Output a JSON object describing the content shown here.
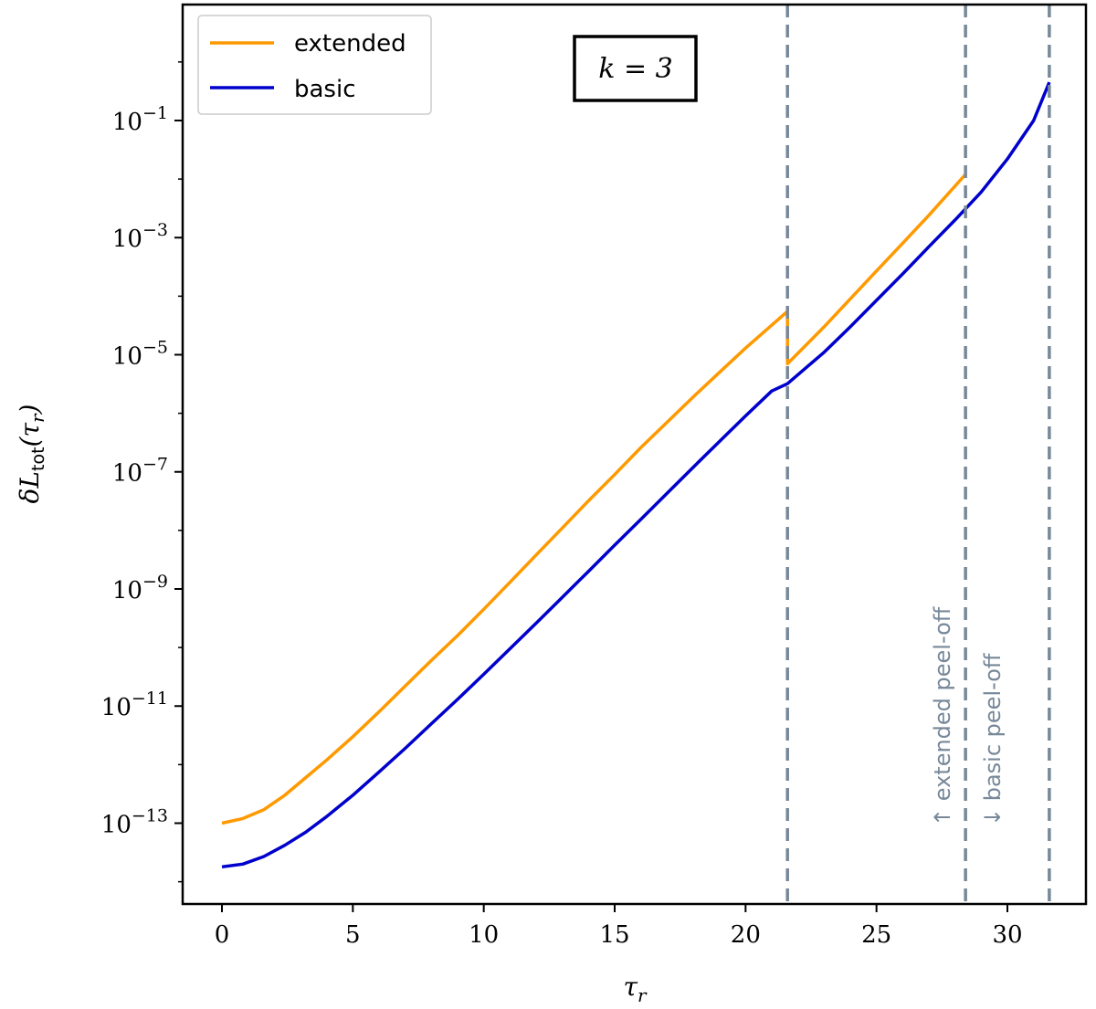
{
  "chart_data": {
    "type": "line",
    "title": "",
    "xlabel": "τ_r",
    "ylabel": "δL_tot(τ_r)",
    "xlim": [
      -1.5,
      33.0
    ],
    "ylim_log10": [
      -14.38,
      0.98
    ],
    "yscale": "log",
    "grid": false,
    "legend_position": "top-left",
    "x_ticks": [
      0,
      5,
      10,
      15,
      20,
      25,
      30
    ],
    "x_tick_labels": [
      "0",
      "5",
      "10",
      "15",
      "20",
      "25",
      "30"
    ],
    "y_ticks_log10": [
      -13,
      -11,
      -9,
      -7,
      -5,
      -3,
      -1
    ],
    "y_tick_mantissa": "10",
    "y_tick_exponents": [
      "−13",
      "−11",
      "−9",
      "−7",
      "−5",
      "−3",
      "−1"
    ],
    "series": [
      {
        "name": "extended",
        "color": "#FF9900",
        "x": [
          0.0,
          0.8,
          1.6,
          2.4,
          3.2,
          4.0,
          5.0,
          6.0,
          7.0,
          8.0,
          9.0,
          10.0,
          11.0,
          12.0,
          13.0,
          14.0,
          15.0,
          16.0,
          17.0,
          18.0,
          19.0,
          20.0,
          21.0,
          21.6,
          21.6,
          23.0,
          24.0,
          25.0,
          26.0,
          27.0,
          28.4
        ],
        "y": [
          1e-13,
          1.2e-13,
          1.7e-13,
          3e-13,
          6e-13,
          1.2e-12,
          3e-12,
          8e-12,
          2.2e-11,
          6e-11,
          1.6e-10,
          4.5e-10,
          1.3e-09,
          3.8e-09,
          1.1e-08,
          3.2e-08,
          9e-08,
          2.6e-07,
          7e-07,
          1.9e-06,
          5e-06,
          1.3e-05,
          3.2e-05,
          5.5e-05,
          7e-06,
          3e-05,
          9e-05,
          0.00027,
          0.0008,
          0.0024,
          0.012
        ]
      },
      {
        "name": "basic",
        "color": "#0000CC",
        "x": [
          0.0,
          0.8,
          1.6,
          2.4,
          3.2,
          4.0,
          5.0,
          6.0,
          7.0,
          8.0,
          9.0,
          10.0,
          11.0,
          12.0,
          13.0,
          14.0,
          15.0,
          16.0,
          17.0,
          18.0,
          19.0,
          20.0,
          21.0,
          21.6,
          23.0,
          24.0,
          25.0,
          26.0,
          27.0,
          28.0,
          29.0,
          30.0,
          31.0,
          31.6
        ],
        "y": [
          1.8e-14,
          2e-14,
          2.7e-14,
          4.2e-14,
          7e-14,
          1.3e-13,
          3e-13,
          7.5e-13,
          1.9e-12,
          5e-12,
          1.3e-11,
          3.5e-11,
          9.5e-11,
          2.6e-10,
          7.2e-10,
          2e-09,
          5.6e-09,
          1.55e-08,
          4.3e-08,
          1.2e-07,
          3.3e-07,
          9e-07,
          2.4e-06,
          3.2e-06,
          1.1e-05,
          3e-05,
          8.5e-05,
          0.00024,
          0.0007,
          0.002,
          0.006,
          0.022,
          0.1,
          0.45
        ]
      }
    ],
    "vlines": [
      {
        "x": 21.6,
        "color": "#778899"
      },
      {
        "x": 28.4,
        "color": "#778899"
      },
      {
        "x": 31.6,
        "color": "#778899"
      }
    ],
    "annotations": [
      {
        "text": "↑ extended peel-off",
        "color": "#778899"
      },
      {
        "text": "↓ basic peel-off",
        "color": "#778899"
      }
    ],
    "box_label": "k = 3"
  }
}
